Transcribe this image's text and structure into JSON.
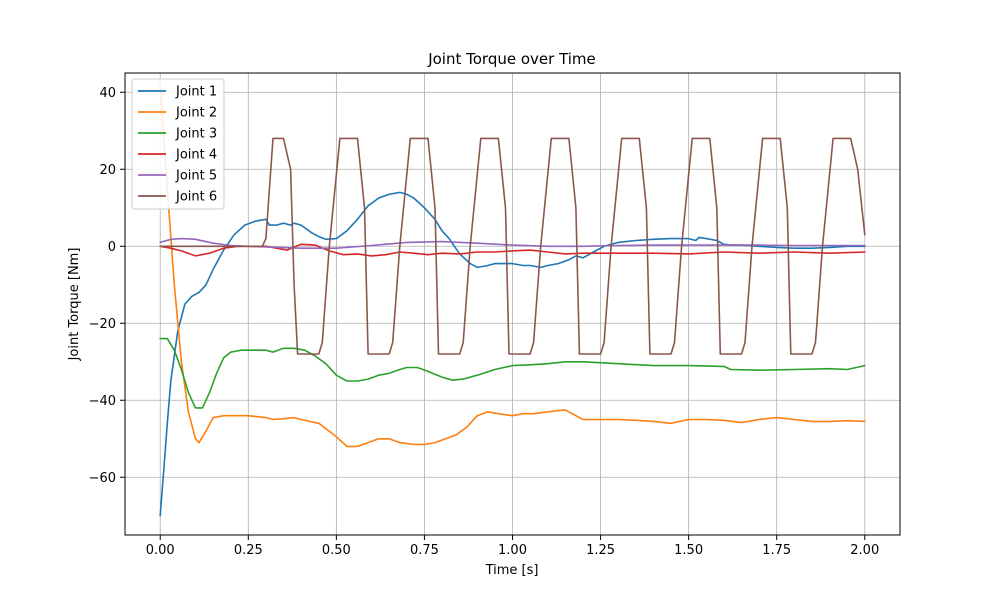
{
  "chart_data": {
    "type": "line",
    "title": "Joint Torque over Time",
    "xlabel": "Time [s]",
    "ylabel": "Joint Torque [Nm]",
    "xlim": [
      -0.1,
      2.1
    ],
    "ylim": [
      -75,
      45
    ],
    "xticks": [
      0.0,
      0.25,
      0.5,
      0.75,
      1.0,
      1.25,
      1.5,
      1.75,
      2.0
    ],
    "xtick_labels": [
      "0.00",
      "0.25",
      "0.50",
      "0.75",
      "1.00",
      "1.25",
      "1.50",
      "1.75",
      "2.00"
    ],
    "yticks": [
      -60,
      -40,
      -20,
      0,
      20,
      40
    ],
    "ytick_labels": [
      "−60",
      "−40",
      "−20",
      "0",
      "20",
      "40"
    ],
    "grid": true,
    "legend_position": "top-left",
    "series": [
      {
        "name": "Joint 1",
        "color": "#1f77b4",
        "x": [
          0,
          0.01,
          0.02,
          0.03,
          0.05,
          0.07,
          0.09,
          0.11,
          0.13,
          0.15,
          0.18,
          0.21,
          0.24,
          0.27,
          0.3,
          0.31,
          0.33,
          0.35,
          0.37,
          0.38,
          0.4,
          0.43,
          0.45,
          0.47,
          0.5,
          0.53,
          0.56,
          0.59,
          0.62,
          0.65,
          0.68,
          0.7,
          0.72,
          0.75,
          0.78,
          0.8,
          0.82,
          0.85,
          0.88,
          0.9,
          0.93,
          0.95,
          0.97,
          1.0,
          1.03,
          1.05,
          1.08,
          1.1,
          1.13,
          1.16,
          1.18,
          1.2,
          1.23,
          1.26,
          1.3,
          1.35,
          1.4,
          1.45,
          1.5,
          1.52,
          1.53,
          1.55,
          1.58,
          1.6,
          1.62,
          1.65,
          1.7,
          1.75,
          1.8,
          1.85,
          1.9,
          1.95,
          2.0
        ],
        "y": [
          -70,
          -58,
          -46,
          -35,
          -22,
          -15,
          -13,
          -12,
          -10,
          -6,
          -1,
          3,
          5.5,
          6.5,
          7,
          5.5,
          5.5,
          6,
          5.5,
          6,
          5.5,
          3.5,
          2.5,
          1.8,
          2,
          4,
          7,
          10.5,
          12.5,
          13.5,
          14,
          13.5,
          12.5,
          10,
          7,
          4,
          2,
          -2,
          -4.5,
          -5.5,
          -5,
          -4.5,
          -4.5,
          -4.5,
          -5,
          -5,
          -5.5,
          -5,
          -4.5,
          -3.5,
          -2.5,
          -3,
          -1.5,
          0,
          1,
          1.5,
          1.8,
          2,
          2,
          1.5,
          2.3,
          2,
          1.5,
          0.5,
          0.3,
          0.3,
          0,
          -0.3,
          -0.5,
          -0.5,
          -0.3,
          0,
          0
        ]
      },
      {
        "name": "Joint 2",
        "color": "#ff7f0e",
        "x": [
          0,
          0.02,
          0.04,
          0.06,
          0.08,
          0.1,
          0.11,
          0.13,
          0.15,
          0.18,
          0.21,
          0.25,
          0.3,
          0.32,
          0.35,
          0.38,
          0.4,
          0.45,
          0.5,
          0.53,
          0.56,
          0.59,
          0.62,
          0.65,
          0.68,
          0.72,
          0.75,
          0.78,
          0.81,
          0.84,
          0.87,
          0.9,
          0.93,
          0.96,
          1.0,
          1.03,
          1.06,
          1.1,
          1.15,
          1.2,
          1.25,
          1.3,
          1.35,
          1.4,
          1.45,
          1.5,
          1.55,
          1.6,
          1.65,
          1.7,
          1.75,
          1.8,
          1.85,
          1.9,
          1.95,
          2.0
        ],
        "y": [
          42,
          15,
          -10,
          -30,
          -43,
          -50,
          -51,
          -48,
          -44.5,
          -44,
          -44,
          -44,
          -44.5,
          -45,
          -44.8,
          -44.5,
          -45,
          -46,
          -49.5,
          -52,
          -52,
          -51,
          -50,
          -50,
          -51,
          -51.5,
          -51.5,
          -51,
          -50,
          -49,
          -47,
          -44,
          -43,
          -43.5,
          -44,
          -43.5,
          -43.5,
          -43,
          -42.5,
          -45,
          -45,
          -45,
          -45.2,
          -45.5,
          -46,
          -45,
          -45,
          -45.2,
          -45.8,
          -45,
          -44.5,
          -45,
          -45.5,
          -45.5,
          -45.3,
          -45.5
        ]
      },
      {
        "name": "Joint 3",
        "color": "#2ca02c",
        "x": [
          0,
          0.02,
          0.04,
          0.06,
          0.08,
          0.1,
          0.12,
          0.14,
          0.16,
          0.18,
          0.2,
          0.23,
          0.26,
          0.3,
          0.32,
          0.35,
          0.38,
          0.41,
          0.44,
          0.47,
          0.5,
          0.53,
          0.56,
          0.59,
          0.62,
          0.65,
          0.68,
          0.7,
          0.73,
          0.76,
          0.8,
          0.83,
          0.86,
          0.9,
          0.95,
          1.0,
          1.05,
          1.1,
          1.15,
          1.2,
          1.3,
          1.4,
          1.5,
          1.6,
          1.62,
          1.7,
          1.8,
          1.9,
          1.95,
          2.0
        ],
        "y": [
          -24,
          -24,
          -27,
          -32,
          -38,
          -42,
          -42,
          -38,
          -33,
          -29,
          -27.5,
          -27,
          -27,
          -27,
          -27.5,
          -26.5,
          -26.5,
          -27,
          -28.5,
          -30.5,
          -33.5,
          -35,
          -35,
          -34.5,
          -33.5,
          -33,
          -32,
          -31.5,
          -31.5,
          -32.5,
          -34,
          -34.8,
          -34.5,
          -33.5,
          -32,
          -31,
          -30.8,
          -30.5,
          -30,
          -30,
          -30.5,
          -31,
          -31,
          -31.2,
          -32,
          -32.2,
          -32,
          -31.8,
          -32,
          -31
        ]
      },
      {
        "name": "Joint 4",
        "color": "#d62728",
        "x": [
          0,
          0.03,
          0.06,
          0.1,
          0.14,
          0.18,
          0.22,
          0.26,
          0.3,
          0.33,
          0.36,
          0.4,
          0.44,
          0.48,
          0.52,
          0.56,
          0.6,
          0.64,
          0.68,
          0.72,
          0.76,
          0.8,
          0.85,
          0.9,
          0.95,
          1.0,
          1.05,
          1.1,
          1.15,
          1.2,
          1.3,
          1.4,
          1.5,
          1.6,
          1.7,
          1.8,
          1.9,
          2.0
        ],
        "y": [
          0,
          -0.5,
          -1.2,
          -2.5,
          -1.8,
          -0.5,
          0,
          0,
          0,
          -0.5,
          -1,
          0.5,
          0.3,
          -1.2,
          -2.2,
          -2,
          -2.5,
          -2.2,
          -1.5,
          -1.8,
          -2.2,
          -1.8,
          -2,
          -1.5,
          -1.5,
          -1.2,
          -1,
          -1.5,
          -2,
          -1.8,
          -1.8,
          -1.8,
          -2,
          -1.5,
          -1.8,
          -1.5,
          -1.8,
          -1.5
        ]
      },
      {
        "name": "Joint 5",
        "color": "#9467bd",
        "x": [
          0,
          0.03,
          0.06,
          0.1,
          0.15,
          0.2,
          0.3,
          0.4,
          0.5,
          0.6,
          0.7,
          0.8,
          0.9,
          1.0,
          1.1,
          1.2,
          1.3,
          1.4,
          1.5,
          1.6,
          1.7,
          1.8,
          1.9,
          2.0
        ],
        "y": [
          1,
          1.8,
          2,
          1.8,
          0.8,
          0.2,
          -0.2,
          -0.5,
          -0.5,
          0.2,
          1,
          1.2,
          0.8,
          0.3,
          0,
          0,
          0.2,
          0.3,
          0.3,
          0.3,
          0.3,
          0.2,
          0.2,
          0.2
        ]
      },
      {
        "name": "Joint 6",
        "color": "#8c564b",
        "x": [
          0,
          0.29,
          0.3,
          0.32,
          0.35,
          0.37,
          0.38,
          0.39,
          0.45,
          0.46,
          0.48,
          0.51,
          0.56,
          0.58,
          0.59,
          0.65,
          0.66,
          0.68,
          0.71,
          0.76,
          0.78,
          0.79,
          0.85,
          0.86,
          0.88,
          0.91,
          0.96,
          0.98,
          0.99,
          1.05,
          1.06,
          1.08,
          1.11,
          1.16,
          1.18,
          1.19,
          1.25,
          1.26,
          1.28,
          1.31,
          1.36,
          1.38,
          1.39,
          1.45,
          1.46,
          1.48,
          1.51,
          1.56,
          1.58,
          1.59,
          1.65,
          1.66,
          1.68,
          1.71,
          1.76,
          1.78,
          1.79,
          1.85,
          1.86,
          1.88,
          1.91,
          1.96,
          1.98,
          2.0
        ],
        "y": [
          0,
          0,
          2,
          28,
          28,
          20,
          -10,
          -28,
          -28,
          -25,
          0,
          28,
          28,
          10,
          -28,
          -28,
          -25,
          0,
          28,
          28,
          10,
          -28,
          -28,
          -25,
          0,
          28,
          28,
          10,
          -28,
          -28,
          -25,
          0,
          28,
          28,
          10,
          -28,
          -28,
          -25,
          0,
          28,
          28,
          10,
          -28,
          -28,
          -25,
          0,
          28,
          28,
          10,
          -28,
          -28,
          -25,
          0,
          28,
          28,
          10,
          -28,
          -28,
          -25,
          0,
          28,
          28,
          20,
          3
        ]
      }
    ]
  }
}
